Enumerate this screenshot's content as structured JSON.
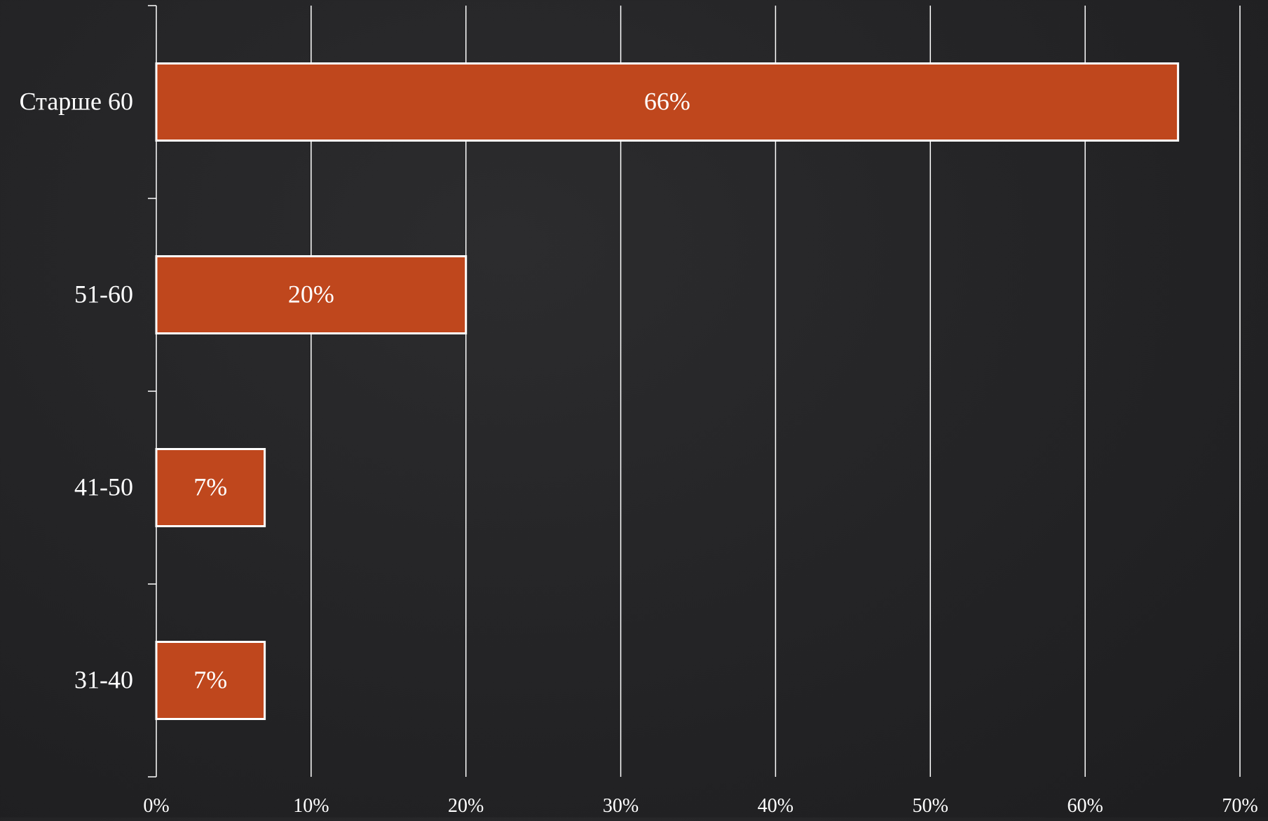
{
  "chart_data": {
    "type": "bar",
    "orientation": "horizontal",
    "categories": [
      "Старше 60",
      "51-60",
      "41-50",
      "31-40"
    ],
    "values": [
      66,
      20,
      7,
      7
    ],
    "data_labels": [
      "66%",
      "20%",
      "7%",
      "7%"
    ],
    "xlim": [
      0,
      70
    ],
    "xticks": [
      0,
      10,
      20,
      30,
      40,
      50,
      60,
      70
    ],
    "xtick_labels": [
      "0%",
      "10%",
      "20%",
      "30%",
      "40%",
      "50%",
      "60%",
      "70%"
    ],
    "title": "",
    "xlabel": "",
    "ylabel": "",
    "grid": "vertical",
    "legend": "none"
  },
  "colors": {
    "bar_fill": "#bf471d",
    "bar_stroke": "#ffffff",
    "grid": "#ffffff",
    "text": "#ffffff"
  }
}
